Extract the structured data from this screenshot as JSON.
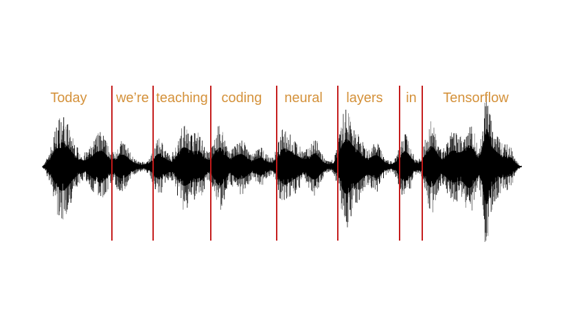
{
  "words": [
    "Today",
    "we’re",
    "teaching",
    "coding",
    "neural",
    "layers",
    "in",
    "Tensorflow"
  ],
  "colors": {
    "word_text": "#d4913a",
    "divider": "#c41a1a",
    "waveform": "#000000"
  }
}
